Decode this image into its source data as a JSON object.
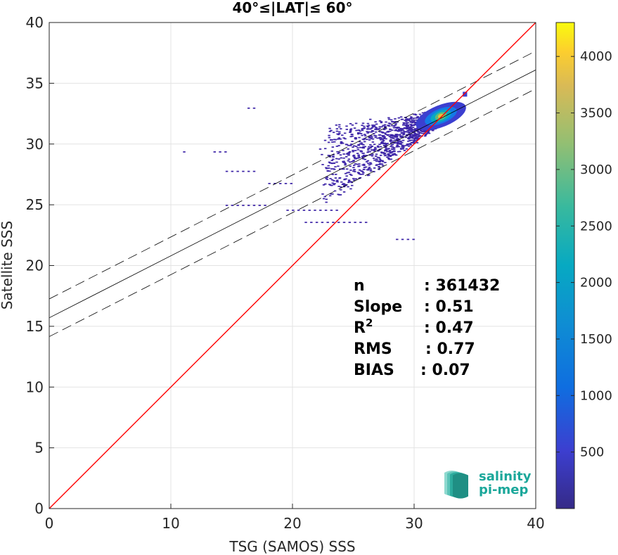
{
  "chart_data": {
    "type": "heatmap",
    "title": "40°≤|LAT|≤ 60°",
    "xlabel": "TSG (SAMOS) SSS",
    "ylabel": "Satellite SSS",
    "xlim": [
      0,
      40
    ],
    "ylim": [
      0,
      40
    ],
    "xticks": [
      "0",
      "10",
      "20",
      "30",
      "40"
    ],
    "yticks": [
      "0",
      "5",
      "10",
      "15",
      "20",
      "25",
      "30",
      "35",
      "40"
    ],
    "grid": true,
    "colorbar": {
      "range": [
        0,
        4300
      ],
      "ticks": [
        "500",
        "1000",
        "1500",
        "2000",
        "2500",
        "3000",
        "3500",
        "4000"
      ],
      "colormap": "parula"
    },
    "density_peak": {
      "x": 32.2,
      "y": 32.3
    },
    "one_to_one_line": {
      "color": "#ff0000",
      "x": [
        0,
        40
      ],
      "y": [
        0,
        40
      ]
    },
    "fit_line": {
      "color": "#000000",
      "intercept": 15.7,
      "slope": 0.51
    },
    "fit_band": {
      "color": "#000000",
      "style": "dashed",
      "offset": 1.55
    },
    "stats": [
      {
        "label": "n",
        "value": ": 361432"
      },
      {
        "label": "Slope",
        "value": ": 0.51"
      },
      {
        "label": "R",
        "sup": "2",
        "value": ": 0.47"
      },
      {
        "label": "RMS",
        "value": ": 0.77"
      },
      {
        "label": "BIAS",
        "value": ": 0.07"
      }
    ]
  },
  "logo": {
    "line1": "salinity",
    "line2": "pi-mep",
    "color": "#1aa79a"
  }
}
